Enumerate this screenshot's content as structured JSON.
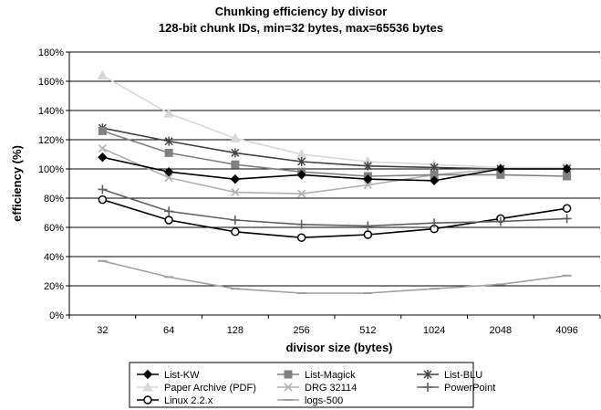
{
  "chart_data": {
    "type": "line",
    "title": "Chunking efficiency by divisor",
    "subtitle": "128-bit chunk IDs, min=32 bytes, max=65536 bytes",
    "xlabel": "divisor size (bytes)",
    "ylabel": "efficiency (%)",
    "categories": [
      "32",
      "64",
      "128",
      "256",
      "512",
      "1024",
      "2048",
      "4096"
    ],
    "y_ticks": [
      "0%",
      "20%",
      "40%",
      "60%",
      "80%",
      "100%",
      "120%",
      "140%",
      "160%",
      "180%"
    ],
    "ylim": [
      0,
      180
    ],
    "y_unit": "%",
    "grid": "horizontal",
    "legend_position": "bottom",
    "series": [
      {
        "name": "List-KW",
        "marker": "diamond",
        "color": "#000000",
        "values": [
          108,
          98,
          93,
          96,
          93,
          92,
          100,
          100
        ]
      },
      {
        "name": "List-Magick",
        "marker": "square",
        "color": "#808080",
        "values": [
          126,
          111,
          103,
          98,
          95,
          96,
          96,
          95
        ]
      },
      {
        "name": "List-BLU",
        "marker": "asterisk",
        "color": "#404040",
        "values": [
          128,
          119,
          111,
          105,
          102,
          101,
          100,
          100
        ]
      },
      {
        "name": "Paper Archive (PDF)",
        "marker": "triangle",
        "color": "#d8d8d8",
        "values": [
          164,
          138,
          121,
          110,
          105,
          103,
          101,
          101
        ]
      },
      {
        "name": "DRG 32114",
        "marker": "x",
        "color": "#b0b0b0",
        "values": [
          114,
          94,
          84,
          83,
          89,
          96,
          100,
          101
        ]
      },
      {
        "name": "PowerPoint",
        "marker": "plus",
        "color": "#606060",
        "values": [
          86,
          71,
          65,
          62,
          61,
          63,
          64,
          66
        ]
      },
      {
        "name": "Linux 2.2.x",
        "marker": "circle",
        "color": "#000000",
        "values": [
          79,
          65,
          57,
          53,
          55,
          59,
          66,
          73
        ]
      },
      {
        "name": "logs-500",
        "marker": "dash",
        "color": "#a0a0a0",
        "values": [
          37,
          26,
          18,
          15,
          15,
          18,
          21,
          27
        ]
      }
    ]
  }
}
